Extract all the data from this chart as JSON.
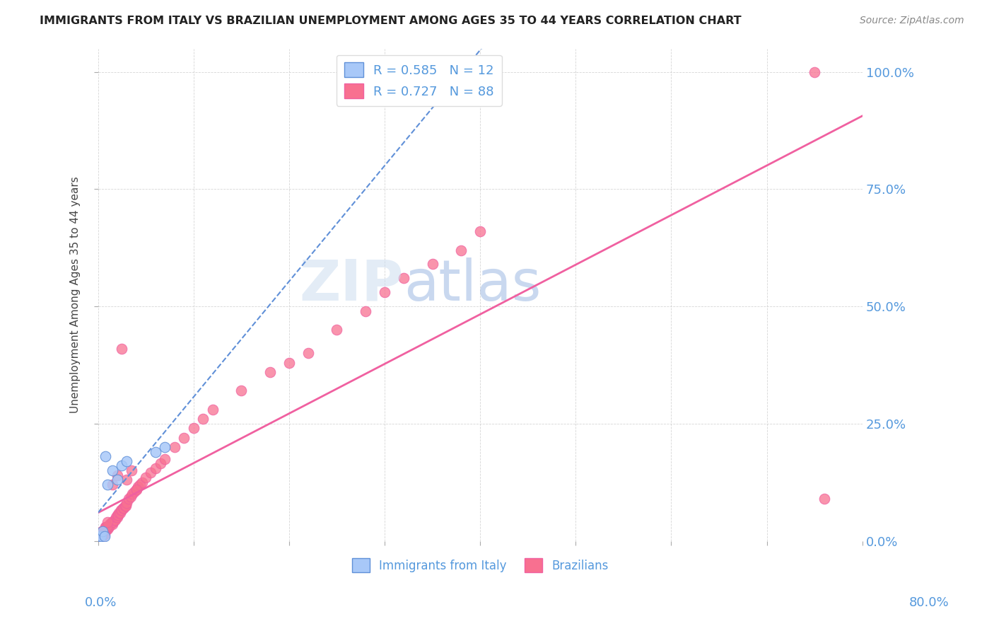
{
  "title": "IMMIGRANTS FROM ITALY VS BRAZILIAN UNEMPLOYMENT AMONG AGES 35 TO 44 YEARS CORRELATION CHART",
  "source": "Source: ZipAtlas.com",
  "ylabel": "Unemployment Among Ages 35 to 44 years",
  "legend_italy": "Immigrants from Italy",
  "legend_brazil": "Brazilians",
  "italy_R": "0.585",
  "italy_N": "12",
  "brazil_R": "0.727",
  "brazil_N": "88",
  "italy_color": "#a8c8f8",
  "brazil_color": "#f87090",
  "italy_line_color": "#6090d8",
  "brazil_line_color": "#f060a0",
  "xlim": [
    0.0,
    0.8
  ],
  "ylim": [
    0.0,
    1.05
  ],
  "italy_scatter_x": [
    0.002,
    0.003,
    0.005,
    0.007,
    0.008,
    0.01,
    0.015,
    0.02,
    0.025,
    0.03,
    0.06,
    0.07
  ],
  "italy_scatter_y": [
    0.01,
    0.01,
    0.02,
    0.01,
    0.18,
    0.12,
    0.15,
    0.13,
    0.16,
    0.17,
    0.19,
    0.2
  ],
  "brazil_scatter_x": [
    0.001,
    0.002,
    0.002,
    0.003,
    0.003,
    0.004,
    0.004,
    0.005,
    0.005,
    0.006,
    0.006,
    0.007,
    0.007,
    0.008,
    0.008,
    0.009,
    0.009,
    0.01,
    0.01,
    0.011,
    0.012,
    0.013,
    0.014,
    0.015,
    0.015,
    0.016,
    0.017,
    0.018,
    0.019,
    0.02,
    0.02,
    0.021,
    0.022,
    0.023,
    0.024,
    0.025,
    0.026,
    0.027,
    0.028,
    0.029,
    0.03,
    0.032,
    0.034,
    0.036,
    0.038,
    0.04,
    0.042,
    0.044,
    0.046,
    0.05,
    0.055,
    0.06,
    0.065,
    0.07,
    0.08,
    0.09,
    0.1,
    0.11,
    0.12,
    0.15,
    0.18,
    0.2,
    0.22,
    0.25,
    0.28,
    0.3,
    0.32,
    0.35,
    0.38,
    0.4,
    0.001,
    0.002,
    0.003,
    0.004,
    0.005,
    0.006,
    0.007,
    0.008,
    0.009,
    0.01,
    0.015,
    0.02,
    0.025,
    0.03,
    0.035,
    0.04,
    0.75,
    0.76
  ],
  "brazil_scatter_y": [
    0.01,
    0.01,
    0.015,
    0.01,
    0.015,
    0.01,
    0.02,
    0.015,
    0.02,
    0.015,
    0.02,
    0.015,
    0.02,
    0.025,
    0.03,
    0.025,
    0.03,
    0.025,
    0.03,
    0.03,
    0.035,
    0.035,
    0.04,
    0.035,
    0.04,
    0.04,
    0.045,
    0.045,
    0.05,
    0.05,
    0.055,
    0.055,
    0.06,
    0.06,
    0.065,
    0.065,
    0.07,
    0.07,
    0.075,
    0.075,
    0.08,
    0.09,
    0.095,
    0.1,
    0.105,
    0.11,
    0.115,
    0.12,
    0.125,
    0.135,
    0.145,
    0.155,
    0.165,
    0.175,
    0.2,
    0.22,
    0.24,
    0.26,
    0.28,
    0.32,
    0.36,
    0.38,
    0.4,
    0.45,
    0.49,
    0.53,
    0.56,
    0.59,
    0.62,
    0.66,
    0.01,
    0.01,
    0.01,
    0.01,
    0.01,
    0.02,
    0.02,
    0.03,
    0.03,
    0.04,
    0.12,
    0.14,
    0.41,
    0.13,
    0.15,
    0.11,
    1.0,
    0.09
  ]
}
